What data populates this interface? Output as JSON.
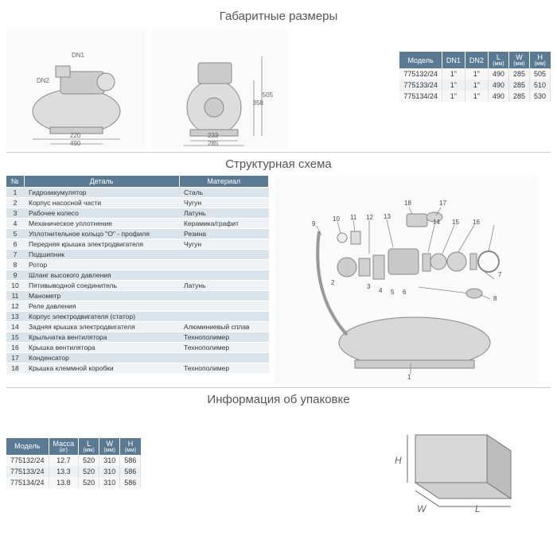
{
  "sections": {
    "dimensions_title": "Габаритные размеры",
    "scheme_title": "Структурная схема",
    "packaging_title": "Информация об упаковке"
  },
  "dim_drawing": {
    "dn1": "DN1",
    "dn2": "DN2",
    "w220": "220",
    "w490": "490",
    "w233": "233",
    "w285": "285",
    "h358": "358",
    "h505": "505"
  },
  "dimensions_table": {
    "headers": {
      "model": "Модель",
      "dn1": "DN1",
      "dn2": "DN2",
      "l": "L",
      "l_sub": "(мм)",
      "w": "W",
      "w_sub": "(мм)",
      "h": "H",
      "h_sub": "(мм)"
    },
    "rows": [
      {
        "model": "775132/24",
        "dn1": "1\"",
        "dn2": "1\"",
        "l": "490",
        "w": "285",
        "h": "505"
      },
      {
        "model": "775133/24",
        "dn1": "1\"",
        "dn2": "1\"",
        "l": "490",
        "w": "285",
        "h": "510"
      },
      {
        "model": "775134/24",
        "dn1": "1\"",
        "dn2": "1\"",
        "l": "490",
        "w": "285",
        "h": "530"
      }
    ]
  },
  "parts_table": {
    "headers": {
      "num": "№",
      "detail": "Деталь",
      "material": "Материал"
    },
    "rows": [
      {
        "n": "1",
        "detail": "Гидроаккумулятор",
        "material": "Сталь"
      },
      {
        "n": "2",
        "detail": "Корпус насосной части",
        "material": "Чугун"
      },
      {
        "n": "3",
        "detail": "Рабочее колесо",
        "material": "Латунь"
      },
      {
        "n": "4",
        "detail": "Механическое уплотнение",
        "material": "Керамика/графит"
      },
      {
        "n": "5",
        "detail": "Уплотнительное кольцо \"O\" - профиля",
        "material": "Резина"
      },
      {
        "n": "6",
        "detail": "Передняя крышка электродвигателя",
        "material": "Чугун"
      },
      {
        "n": "7",
        "detail": "Подшипник",
        "material": ""
      },
      {
        "n": "8",
        "detail": "Ротор",
        "material": ""
      },
      {
        "n": "9",
        "detail": "Шланг высокого давления",
        "material": ""
      },
      {
        "n": "10",
        "detail": "Пятивыводной соединитель",
        "material": "Латунь"
      },
      {
        "n": "11",
        "detail": "Манометр",
        "material": ""
      },
      {
        "n": "12",
        "detail": "Реле давления",
        "material": ""
      },
      {
        "n": "13",
        "detail": "Корпус электродвигателя (статор)",
        "material": ""
      },
      {
        "n": "14",
        "detail": "Задняя крышка электродвигателя",
        "material": "Алюминиевый сплав"
      },
      {
        "n": "15",
        "detail": "Крыльчатка вентилятора",
        "material": "Технополимер"
      },
      {
        "n": "16",
        "detail": "Крышка вентилятора",
        "material": "Технополимер"
      },
      {
        "n": "17",
        "detail": "Конденсатор",
        "material": ""
      },
      {
        "n": "18",
        "detail": "Крышка клеммной коробки",
        "material": "Технополимер"
      }
    ]
  },
  "exploded_callouts": {
    "c1": "1",
    "c2": "2",
    "c3": "3",
    "c4": "4",
    "c5": "5",
    "c6": "6",
    "c7": "7",
    "c8": "8",
    "c9": "9",
    "c10": "10",
    "c11": "11",
    "c12": "12",
    "c13": "13",
    "c14": "14",
    "c15": "15",
    "c16": "16",
    "c17": "17",
    "c18": "18"
  },
  "packaging_table": {
    "headers": {
      "model": "Модель",
      "mass": "Масса",
      "mass_sub": "(кг)",
      "l": "L",
      "l_sub": "(мм)",
      "w": "W",
      "w_sub": "(мм)",
      "h": "H",
      "h_sub": "(мм)"
    },
    "rows": [
      {
        "model": "775132/24",
        "mass": "12.7",
        "l": "520",
        "w": "310",
        "h": "586"
      },
      {
        "model": "775133/24",
        "mass": "13.3",
        "l": "520",
        "w": "310",
        "h": "586"
      },
      {
        "model": "775134/24",
        "mass": "13.8",
        "l": "520",
        "w": "310",
        "h": "586"
      }
    ]
  },
  "pkg_labels": {
    "H": "H",
    "W": "W",
    "L": "L"
  },
  "colors": {
    "header_bg": "#5a7a94",
    "row_alt": "#dbe4ea",
    "row_base": "#eef2f5"
  }
}
